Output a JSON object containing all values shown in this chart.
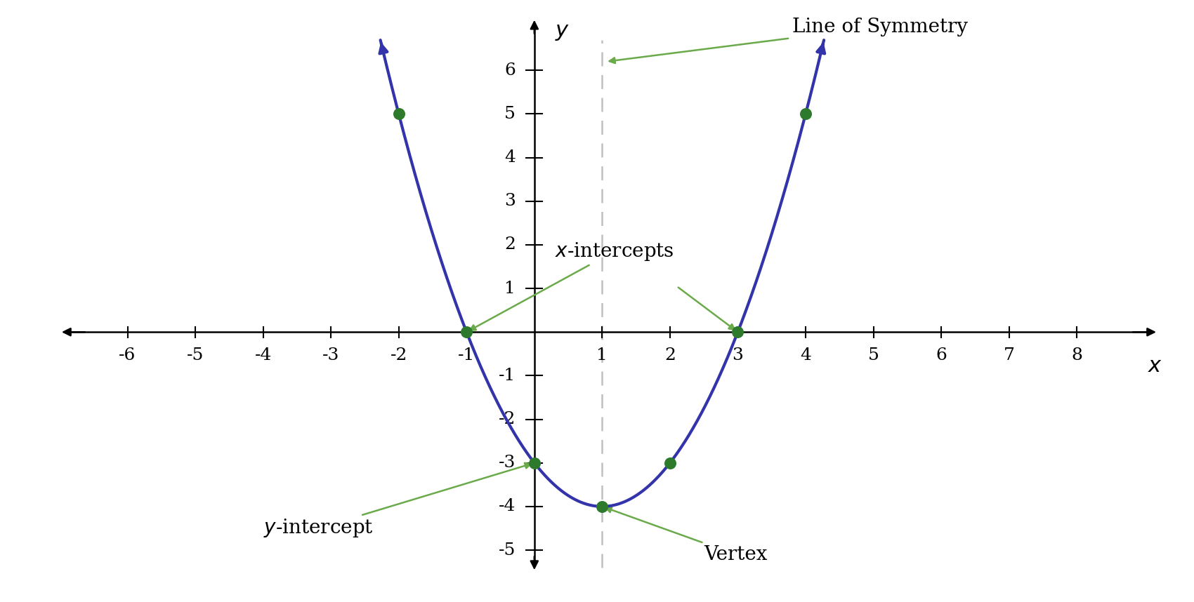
{
  "xlim": [
    -7.0,
    9.2
  ],
  "ylim": [
    -5.5,
    7.2
  ],
  "xticks": [
    -6,
    -5,
    -4,
    -3,
    -2,
    -1,
    1,
    2,
    3,
    4,
    5,
    6,
    7,
    8
  ],
  "yticks": [
    -5,
    -4,
    -3,
    -2,
    -1,
    1,
    2,
    3,
    4,
    5,
    6
  ],
  "curve_color": "#3333aa",
  "curve_linewidth": 3.0,
  "dot_color": "#2d7a2d",
  "dot_size": 100,
  "symmetry_line_x": 1,
  "annotation_color": "#6aaa4a",
  "annotation_fontsize": 20,
  "axis_label_fontsize": 22,
  "tick_fontsize": 18,
  "dots": [
    [
      -1,
      0
    ],
    [
      3,
      0
    ],
    [
      0,
      -3
    ],
    [
      1,
      -4
    ],
    [
      2,
      -3
    ],
    [
      -2,
      5
    ],
    [
      4,
      5
    ]
  ],
  "figsize": [
    17.0,
    8.58
  ],
  "dpi": 100
}
